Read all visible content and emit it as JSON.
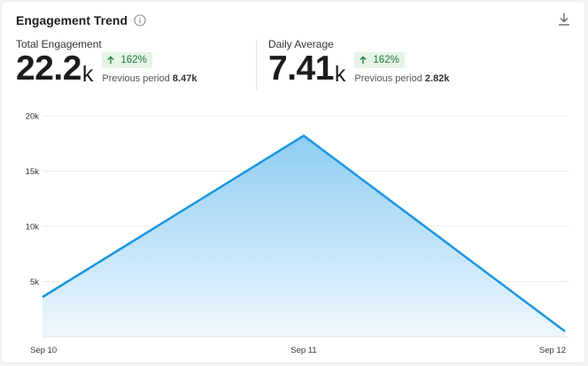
{
  "header": {
    "title": "Engagement Trend",
    "info_icon": "info-icon",
    "download_icon": "download-icon"
  },
  "metrics": [
    {
      "label": "Total Engagement",
      "value": "22.2",
      "unit": "k",
      "change": "162%",
      "change_direction": "up",
      "prev_label": "Previous period",
      "prev_value": "8.47k"
    },
    {
      "label": "Daily Average",
      "value": "7.41",
      "unit": "k",
      "change": "162%",
      "change_direction": "up",
      "prev_label": "Previous period",
      "prev_value": "2.82k"
    }
  ],
  "colors": {
    "line": "#1a96e0",
    "area_top": "#8fcdf3",
    "area_bottom": "#eef7fd",
    "badge_bg": "#e5f4e8",
    "badge_text": "#1f7a3a"
  },
  "chart_data": {
    "type": "area",
    "x": [
      "Sep 10",
      "Sep 11",
      "Sep 12"
    ],
    "values": [
      3600,
      18200,
      500
    ],
    "ylim": [
      0,
      20000
    ],
    "yticks": [
      5000,
      10000,
      15000,
      20000
    ],
    "ytick_labels": [
      "5k",
      "10k",
      "15k",
      "20k"
    ],
    "grid": true,
    "title": "",
    "xlabel": "",
    "ylabel": ""
  }
}
